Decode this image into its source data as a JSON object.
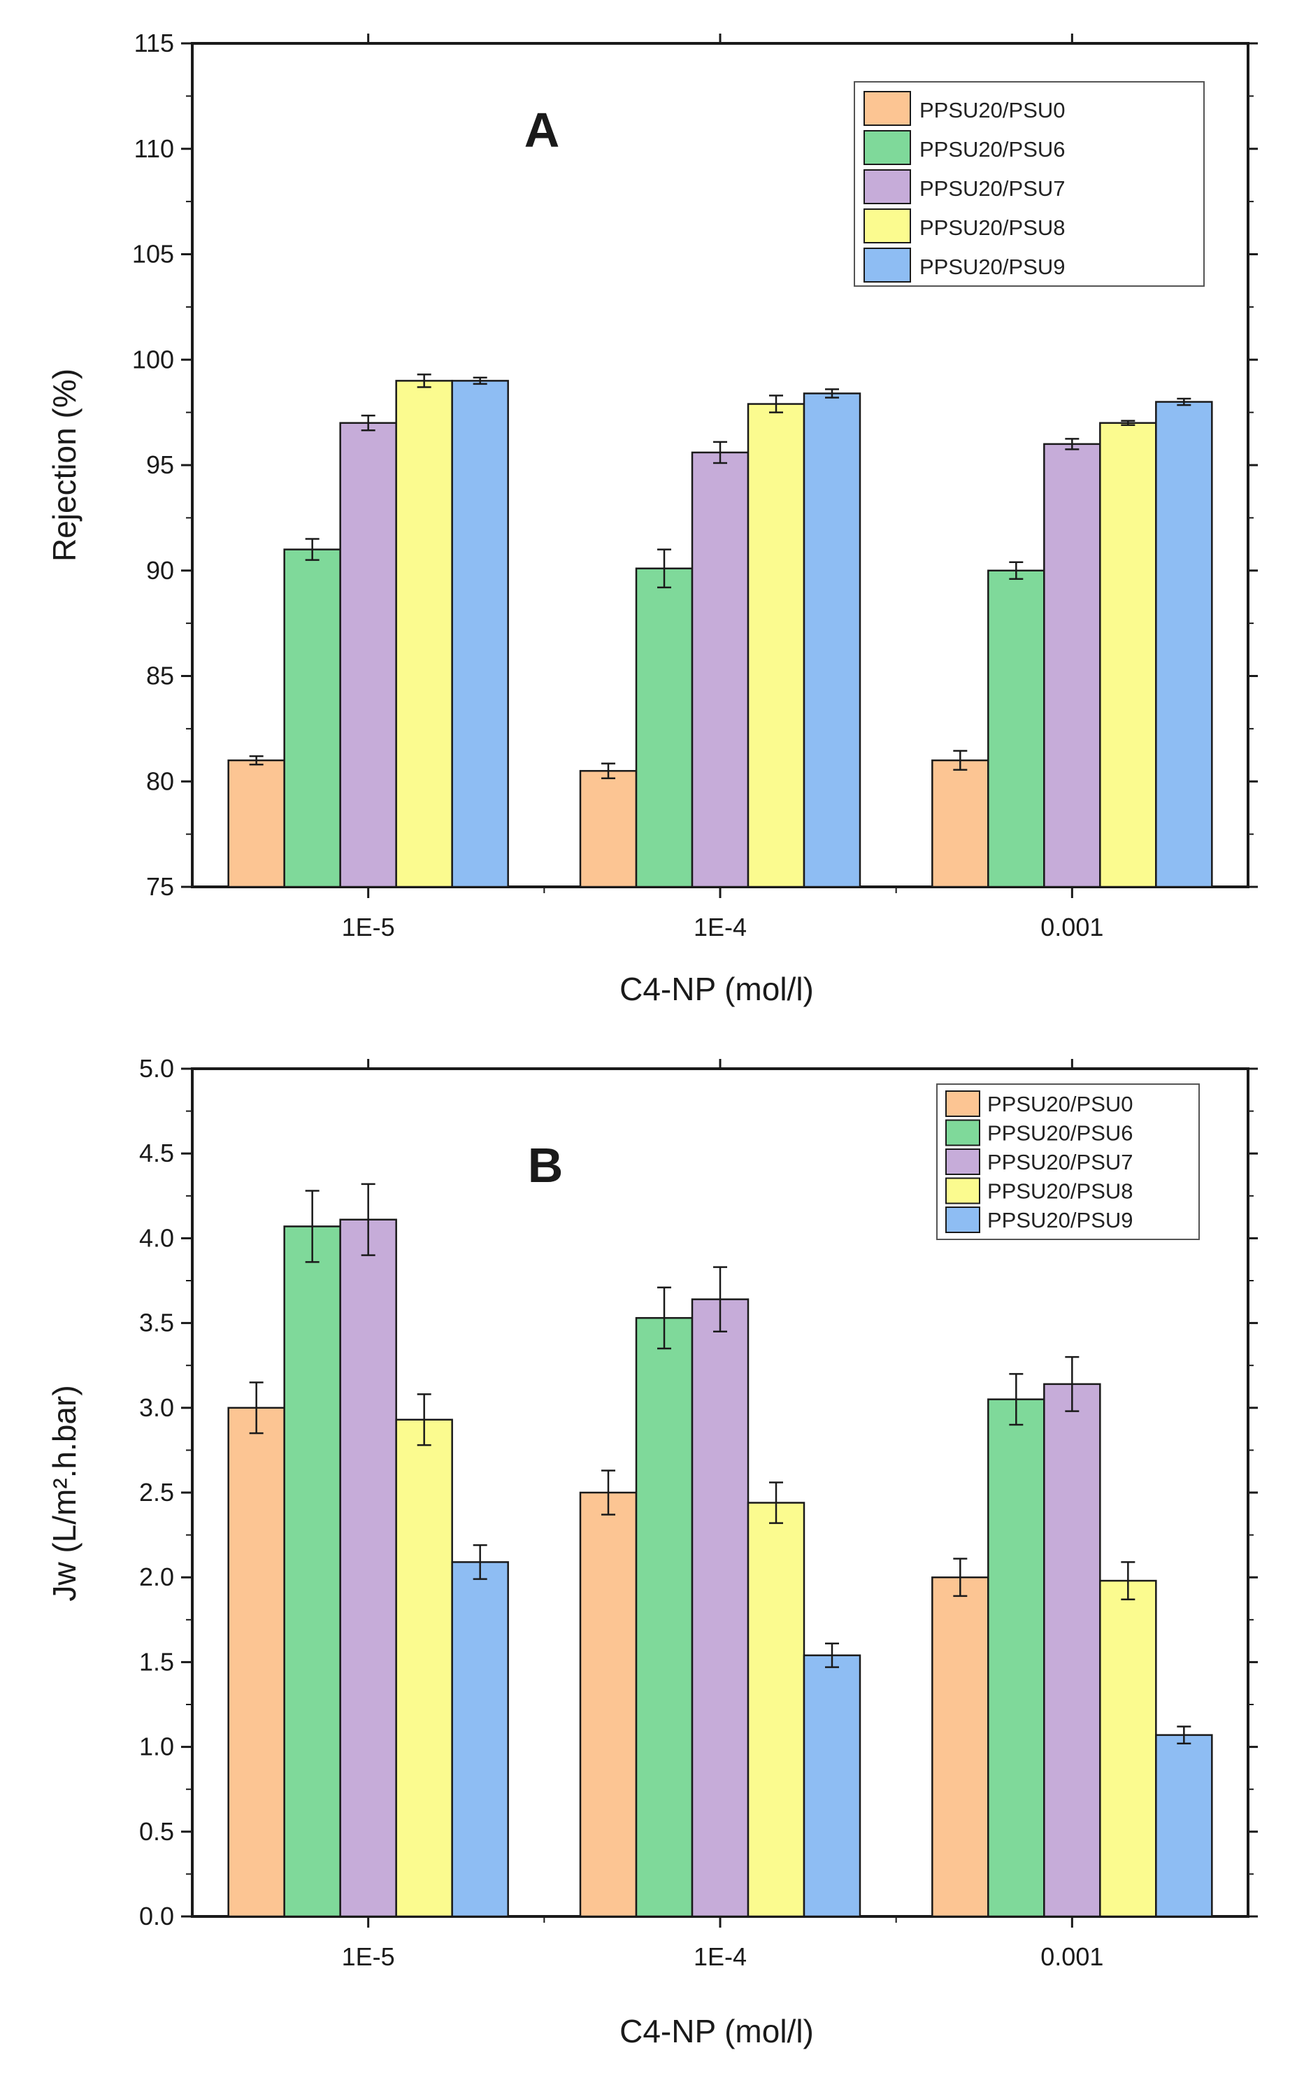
{
  "colors": {
    "series": [
      "#fcc593",
      "#7fd99a",
      "#c6acd9",
      "#fbfb8f",
      "#8ebdf3"
    ],
    "panel_letter": "#ee1c24",
    "axis": "#1a1a1a"
  },
  "chart_data": [
    {
      "type": "bar",
      "panel_label": "A",
      "title": "",
      "xlabel": "C4-NP (mol/l)",
      "ylabel": "Rejection (%)",
      "ylim": [
        75,
        115
      ],
      "yticks": [
        "75",
        "80",
        "85",
        "90",
        "95",
        "100",
        "105",
        "110",
        "115"
      ],
      "categories": [
        "1E-5",
        "1E-4",
        "0.001"
      ],
      "legend_position": "top-right",
      "series": [
        {
          "name": "PPSU20/PSU0",
          "values": [
            81.0,
            80.5,
            81.0
          ],
          "errors": [
            0.2,
            0.35,
            0.45
          ]
        },
        {
          "name": "PPSU20/PSU6",
          "values": [
            91.0,
            90.1,
            90.0
          ],
          "errors": [
            0.5,
            0.9,
            0.4
          ]
        },
        {
          "name": "PPSU20/PSU7",
          "values": [
            97.0,
            95.6,
            96.0
          ],
          "errors": [
            0.35,
            0.5,
            0.25
          ]
        },
        {
          "name": "PPSU20/PSU8",
          "values": [
            99.0,
            97.9,
            97.0
          ],
          "errors": [
            0.3,
            0.4,
            0.1
          ]
        },
        {
          "name": "PPSU20/PSU9",
          "values": [
            99.0,
            98.4,
            98.0
          ],
          "errors": [
            0.15,
            0.2,
            0.15
          ]
        }
      ]
    },
    {
      "type": "bar",
      "panel_label": "B",
      "title": "",
      "xlabel": "C4-NP (mol/l)",
      "ylabel": "Jw (L/m².h.bar)",
      "ylim": [
        0.0,
        5.0
      ],
      "yticks": [
        "0.0",
        "0.5",
        "1.0",
        "1.5",
        "2.0",
        "2.5",
        "3.0",
        "3.5",
        "4.0",
        "4.5",
        "5.0"
      ],
      "categories": [
        "1E-5",
        "1E-4",
        "0.001"
      ],
      "legend_position": "top-right",
      "series": [
        {
          "name": "PPSU20/PSU0",
          "values": [
            3.0,
            2.5,
            2.0
          ],
          "errors": [
            0.15,
            0.13,
            0.11
          ]
        },
        {
          "name": "PPSU20/PSU6",
          "values": [
            4.07,
            3.53,
            3.05
          ],
          "errors": [
            0.21,
            0.18,
            0.15
          ]
        },
        {
          "name": "PPSU20/PSU7",
          "values": [
            4.11,
            3.64,
            3.14
          ],
          "errors": [
            0.21,
            0.19,
            0.16
          ]
        },
        {
          "name": "PPSU20/PSU8",
          "values": [
            2.93,
            2.44,
            1.98
          ],
          "errors": [
            0.15,
            0.12,
            0.11
          ]
        },
        {
          "name": "PPSU20/PSU9",
          "values": [
            2.09,
            1.54,
            1.07
          ],
          "errors": [
            0.1,
            0.07,
            0.05
          ]
        }
      ]
    }
  ]
}
